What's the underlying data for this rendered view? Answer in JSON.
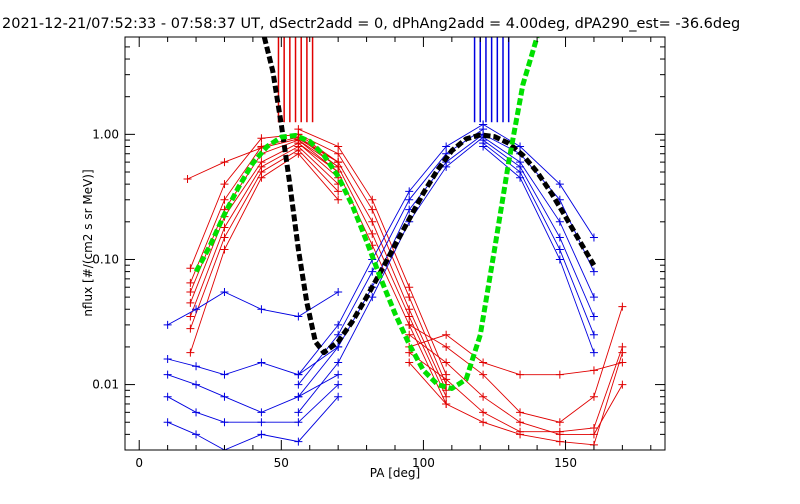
{
  "chart_data": {
    "type": "line",
    "title": "2021-12-21/07:52:33 - 07:58:37 UT, dSectr2add = 0, dPhAng2add = 4.00deg, dPA290_est= -36.6deg",
    "xlabel": "PA [deg]",
    "ylabel": "nflux [#/(cm2 s sr MeV)]",
    "xlim": [
      -5,
      185
    ],
    "ylim": [
      0.003,
      6
    ],
    "yscale": "log",
    "grid": false,
    "x_ticks": [
      0,
      50,
      100,
      150
    ],
    "x_tick_labels": [
      "0",
      "50",
      "100",
      "150"
    ],
    "y_ticks": [
      0.01,
      0.1,
      1.0
    ],
    "y_tick_labels": [
      "0.01",
      "0.10",
      "1.00"
    ],
    "colors": {
      "red_series": "#e00000",
      "blue_series": "#0000e0",
      "black_fit": "#000000",
      "green_fit": "#00e000"
    },
    "series": [
      {
        "color": "#e00000",
        "style": "line+plus-markers",
        "traces": [
          {
            "x": [
              17,
              30,
              43,
              56,
              70
            ],
            "y": [
              0.44,
              0.6,
              0.78,
              0.92,
              0.6
            ]
          },
          {
            "x": [
              18,
              30,
              43,
              56,
              70
            ],
            "y": [
              0.085,
              0.4,
              0.93,
              1.0,
              0.6
            ]
          },
          {
            "x": [
              18,
              30,
              43,
              56,
              70
            ],
            "y": [
              0.065,
              0.3,
              0.8,
              0.95,
              0.55
            ]
          },
          {
            "x": [
              18,
              30,
              43,
              56,
              70
            ],
            "y": [
              0.055,
              0.25,
              0.7,
              0.9,
              0.5
            ]
          },
          {
            "x": [
              18,
              30,
              43,
              56,
              70
            ],
            "y": [
              0.045,
              0.22,
              0.6,
              0.85,
              0.45
            ]
          },
          {
            "x": [
              18,
              30,
              43,
              56,
              70
            ],
            "y": [
              0.035,
              0.18,
              0.55,
              0.8,
              0.4
            ]
          },
          {
            "x": [
              18,
              30,
              43,
              56,
              70
            ],
            "y": [
              0.028,
              0.15,
              0.5,
              0.75,
              0.35
            ]
          },
          {
            "x": [
              18,
              30,
              43,
              56,
              70
            ],
            "y": [
              0.018,
              0.12,
              0.45,
              0.7,
              0.3
            ]
          },
          {
            "x": [
              56,
              70,
              82,
              95,
              108
            ],
            "y": [
              1.1,
              0.8,
              0.3,
              0.06,
              0.012
            ]
          },
          {
            "x": [
              56,
              70,
              82,
              95,
              108
            ],
            "y": [
              1.0,
              0.7,
              0.25,
              0.05,
              0.01
            ]
          },
          {
            "x": [
              56,
              70,
              82,
              95,
              108
            ],
            "y": [
              0.95,
              0.6,
              0.2,
              0.04,
              0.009
            ]
          },
          {
            "x": [
              56,
              70,
              82,
              95,
              108
            ],
            "y": [
              0.9,
              0.55,
              0.16,
              0.035,
              0.008
            ]
          },
          {
            "x": [
              56,
              70,
              82,
              95,
              108
            ],
            "y": [
              0.85,
              0.5,
              0.13,
              0.03,
              0.007
            ]
          },
          {
            "x": [
              95,
              108,
              121,
              134,
              148,
              160,
              170
            ],
            "y": [
              0.02,
              0.025,
              0.015,
              0.012,
              0.012,
              0.013,
              0.015
            ]
          },
          {
            "x": [
              95,
              108,
              121,
              134,
              148,
              160,
              170
            ],
            "y": [
              0.03,
              0.02,
              0.012,
              0.006,
              0.005,
              0.008,
              0.042
            ]
          },
          {
            "x": [
              95,
              108,
              121,
              134,
              148,
              160,
              170
            ],
            "y": [
              0.025,
              0.015,
              0.008,
              0.005,
              0.004,
              0.004,
              0.01
            ]
          },
          {
            "x": [
              95,
              108,
              121,
              134,
              148,
              160,
              170
            ],
            "y": [
              0.018,
              0.011,
              0.006,
              0.0042,
              0.0042,
              0.0045,
              0.02
            ]
          },
          {
            "x": [
              95,
              108,
              121,
              134,
              148,
              160,
              170
            ],
            "y": [
              0.015,
              0.007,
              0.005,
              0.004,
              0.0035,
              0.0033,
              0.018
            ]
          }
        ],
        "spikes_x": [
          49,
          51,
          53,
          55,
          57,
          59,
          61
        ],
        "spikes_top": 6
      },
      {
        "color": "#0000e0",
        "style": "line+plus-markers",
        "traces": [
          {
            "x": [
              10,
              20,
              30,
              43,
              56,
              70
            ],
            "y": [
              0.03,
              0.04,
              0.055,
              0.04,
              0.035,
              0.055
            ]
          },
          {
            "x": [
              10,
              20,
              30,
              43,
              56,
              70
            ],
            "y": [
              0.016,
              0.014,
              0.012,
              0.015,
              0.012,
              0.02
            ]
          },
          {
            "x": [
              10,
              20,
              30,
              43,
              56,
              70
            ],
            "y": [
              0.012,
              0.01,
              0.008,
              0.006,
              0.008,
              0.012
            ]
          },
          {
            "x": [
              10,
              20,
              30,
              43,
              56,
              70
            ],
            "y": [
              0.008,
              0.006,
              0.005,
              0.005,
              0.005,
              0.01
            ]
          },
          {
            "x": [
              10,
              20,
              30,
              43,
              56,
              70
            ],
            "y": [
              0.005,
              0.004,
              0.003,
              0.004,
              0.0035,
              0.008
            ]
          },
          {
            "x": [
              56,
              70,
              82,
              95,
              108,
              121
            ],
            "y": [
              0.012,
              0.03,
              0.1,
              0.35,
              0.8,
              1.2
            ]
          },
          {
            "x": [
              56,
              70,
              82,
              95,
              108,
              121
            ],
            "y": [
              0.01,
              0.025,
              0.08,
              0.3,
              0.7,
              1.1
            ]
          },
          {
            "x": [
              56,
              70,
              82,
              95,
              108,
              121
            ],
            "y": [
              0.008,
              0.02,
              0.06,
              0.25,
              0.6,
              1.0
            ]
          },
          {
            "x": [
              56,
              70,
              82,
              95,
              108,
              121
            ],
            "y": [
              0.006,
              0.015,
              0.05,
              0.2,
              0.55,
              0.95
            ]
          },
          {
            "x": [
              121,
              134,
              148,
              160
            ],
            "y": [
              1.2,
              0.8,
              0.4,
              0.15
            ]
          },
          {
            "x": [
              121,
              134,
              148,
              160
            ],
            "y": [
              1.0,
              0.7,
              0.3,
              0.08
            ]
          },
          {
            "x": [
              121,
              134,
              148,
              160
            ],
            "y": [
              0.95,
              0.6,
              0.2,
              0.05
            ]
          },
          {
            "x": [
              121,
              134,
              148,
              160
            ],
            "y": [
              0.9,
              0.55,
              0.15,
              0.035
            ]
          },
          {
            "x": [
              121,
              134,
              148,
              160
            ],
            "y": [
              0.85,
              0.5,
              0.12,
              0.025
            ]
          },
          {
            "x": [
              121,
              134,
              148,
              160
            ],
            "y": [
              0.8,
              0.45,
              0.1,
              0.018
            ]
          }
        ],
        "spikes_x": [
          118,
          120,
          122,
          124,
          126,
          128,
          130
        ],
        "spikes_top": 6
      },
      {
        "color": "#000000",
        "style": "dashed-thick",
        "x": [
          44,
          47,
          50,
          53,
          56,
          59,
          62,
          65,
          70,
          75,
          80,
          85,
          90,
          95,
          100,
          105,
          110,
          115,
          120,
          125,
          130,
          135,
          140,
          145,
          150,
          155,
          160
        ],
        "y": [
          6,
          3.2,
          1.2,
          0.4,
          0.12,
          0.045,
          0.022,
          0.018,
          0.022,
          0.032,
          0.05,
          0.08,
          0.13,
          0.21,
          0.34,
          0.52,
          0.74,
          0.92,
          0.99,
          0.96,
          0.85,
          0.68,
          0.5,
          0.34,
          0.22,
          0.14,
          0.09
        ]
      },
      {
        "color": "#00e000",
        "style": "dashed-thick",
        "x": [
          20,
          25,
          30,
          35,
          40,
          45,
          50,
          55,
          60,
          65,
          70,
          75,
          80,
          85,
          90,
          95,
          100,
          105,
          110,
          115,
          120,
          125,
          130,
          135,
          140
        ],
        "y": [
          0.08,
          0.13,
          0.23,
          0.38,
          0.59,
          0.8,
          0.95,
          0.98,
          0.88,
          0.68,
          0.46,
          0.27,
          0.14,
          0.07,
          0.037,
          0.021,
          0.013,
          0.01,
          0.0093,
          0.011,
          0.025,
          0.12,
          0.6,
          2.5,
          6
        ]
      }
    ]
  }
}
